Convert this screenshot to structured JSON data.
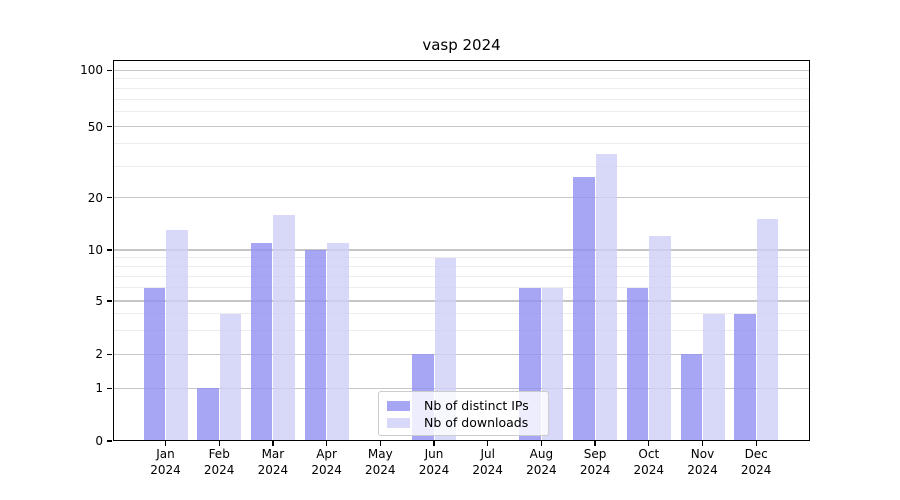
{
  "chart_data": {
    "type": "bar",
    "title": "vasp 2024",
    "categories": [
      "Jan",
      "Feb",
      "Mar",
      "Apr",
      "May",
      "Jun",
      "Jul",
      "Aug",
      "Sep",
      "Oct",
      "Nov",
      "Dec"
    ],
    "x_year_line": "2024",
    "series": [
      {
        "name": "Nb of distinct IPs",
        "color": "#9090f2",
        "values": [
          6,
          1,
          11,
          10,
          0,
          2,
          0,
          6,
          26,
          6,
          2,
          4
        ]
      },
      {
        "name": "Nb of downloads",
        "color": "#cecef7",
        "values": [
          13,
          4,
          16,
          11,
          0,
          9,
          0,
          6,
          35,
          12,
          4,
          15
        ]
      }
    ],
    "bar_alpha": 0.8,
    "xlabel": "",
    "ylabel": "",
    "yticks": [
      100,
      50,
      20,
      10,
      5,
      2,
      1,
      0
    ],
    "yscale": "symlog (linear below 1, logarithmic 1-100)",
    "ylim": [
      0,
      112
    ],
    "grid": {
      "horizontal_major": true,
      "horizontal_minor": true,
      "vertical": false
    },
    "legend": {
      "position": "inside lower center-left",
      "items": [
        "Nb of distinct IPs",
        "Nb of downloads"
      ]
    }
  }
}
